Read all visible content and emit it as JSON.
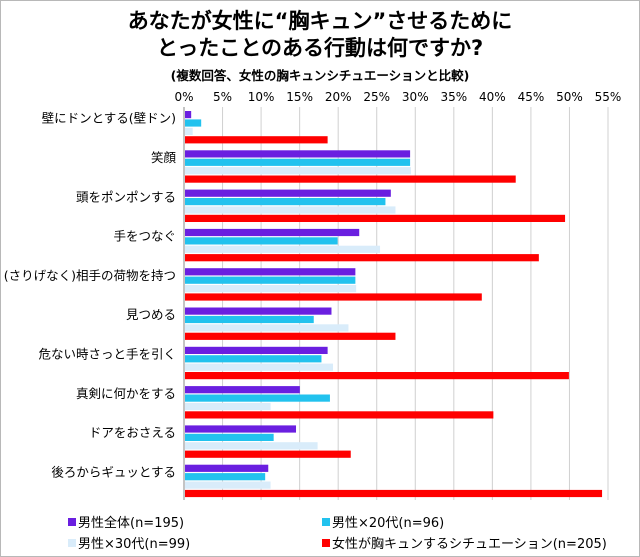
{
  "title_line1": "あなたが女性に“胸キュン”させるために",
  "title_line2": "とったことのある行動は何ですか?",
  "subtitle": "(複数回答、女性の胸キュンシチュエーションと比較)",
  "chart_data": {
    "type": "bar",
    "orientation": "horizontal",
    "title": "あなたが女性に“胸キュン”させるために とったことのある行動は何ですか?",
    "subtitle": "(複数回答、女性の胸キュンシチュエーションと比較)",
    "xlim": [
      0,
      55
    ],
    "x_ticks": [
      "0%",
      "5%",
      "10%",
      "15%",
      "20%",
      "25%",
      "30%",
      "35%",
      "40%",
      "45%",
      "50%",
      "55%"
    ],
    "grid": true,
    "legend_position": "bottom",
    "categories": [
      "壁にドンとする(壁ドン)",
      "笑顔",
      "頭をポンポンする",
      "手をつなぐ",
      "(さりげなく)相手の荷物を持つ",
      "見つめる",
      "危ない時さっと手を引く",
      "真剣に何かをする",
      "ドアをおさえる",
      "後ろからギュッとする"
    ],
    "series": [
      {
        "name": "男性全体(n=195)",
        "color": "#6a1fe0",
        "values": [
          0.8,
          29.2,
          26.7,
          22.6,
          22.1,
          19.0,
          18.5,
          14.9,
          14.4,
          10.8
        ]
      },
      {
        "name": "男性×20代(n=96)",
        "color": "#22c2ee",
        "values": [
          2.1,
          29.2,
          26.0,
          19.8,
          22.1,
          16.7,
          17.7,
          18.8,
          11.5,
          10.4
        ]
      },
      {
        "name": "男性×30代(n=99)",
        "color": "#d9ecfa",
        "values": [
          1.0,
          29.3,
          27.3,
          25.3,
          22.2,
          21.2,
          19.2,
          11.1,
          17.2,
          11.1
        ]
      },
      {
        "name": "女性が胸キュンするシチュエーション(n=205)",
        "color": "#ff0000",
        "values": [
          18.5,
          42.9,
          49.3,
          45.9,
          38.5,
          27.3,
          49.8,
          40.0,
          21.5,
          54.1
        ]
      }
    ]
  }
}
